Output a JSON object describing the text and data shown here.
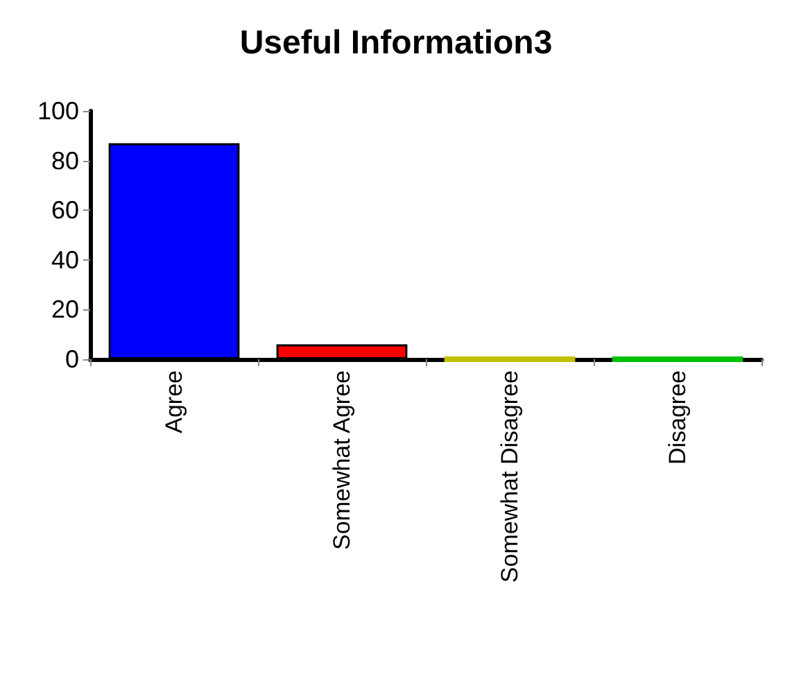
{
  "chart_data": {
    "type": "bar",
    "title": "Useful Information3",
    "categories": [
      "Agree",
      "Somewhat Agree",
      "Somewhat Disagree",
      "Disagree"
    ],
    "values": [
      87,
      6,
      0,
      0
    ],
    "colors": [
      "#0000ff",
      "#ff0000",
      "#c0c000",
      "#00c000"
    ],
    "ylim": [
      0,
      100
    ],
    "yticks": [
      0,
      20,
      40,
      60,
      80,
      100
    ],
    "grid": false
  }
}
